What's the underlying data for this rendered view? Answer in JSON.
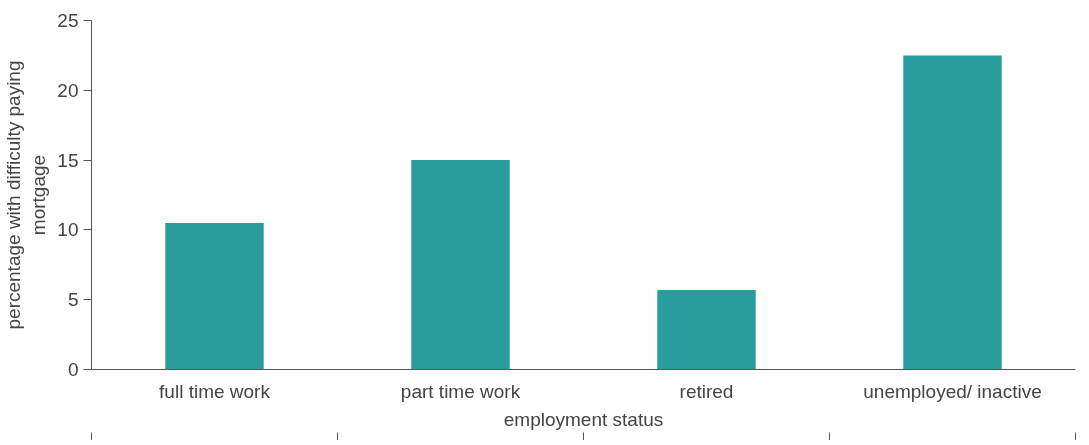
{
  "chart_data": {
    "type": "bar",
    "xlabel": "employment status",
    "ylabel": "percentage with difficulty paying\nmortgage",
    "categories": [
      "full time work",
      "part time work",
      "retired",
      "unemployed/ inactive"
    ],
    "values": [
      10.5,
      15,
      5.7,
      22.5
    ],
    "color": "#289d9b",
    "ylim": [
      0,
      25
    ],
    "yticks": [
      0,
      5,
      10,
      15,
      20,
      25
    ],
    "grid": false
  }
}
